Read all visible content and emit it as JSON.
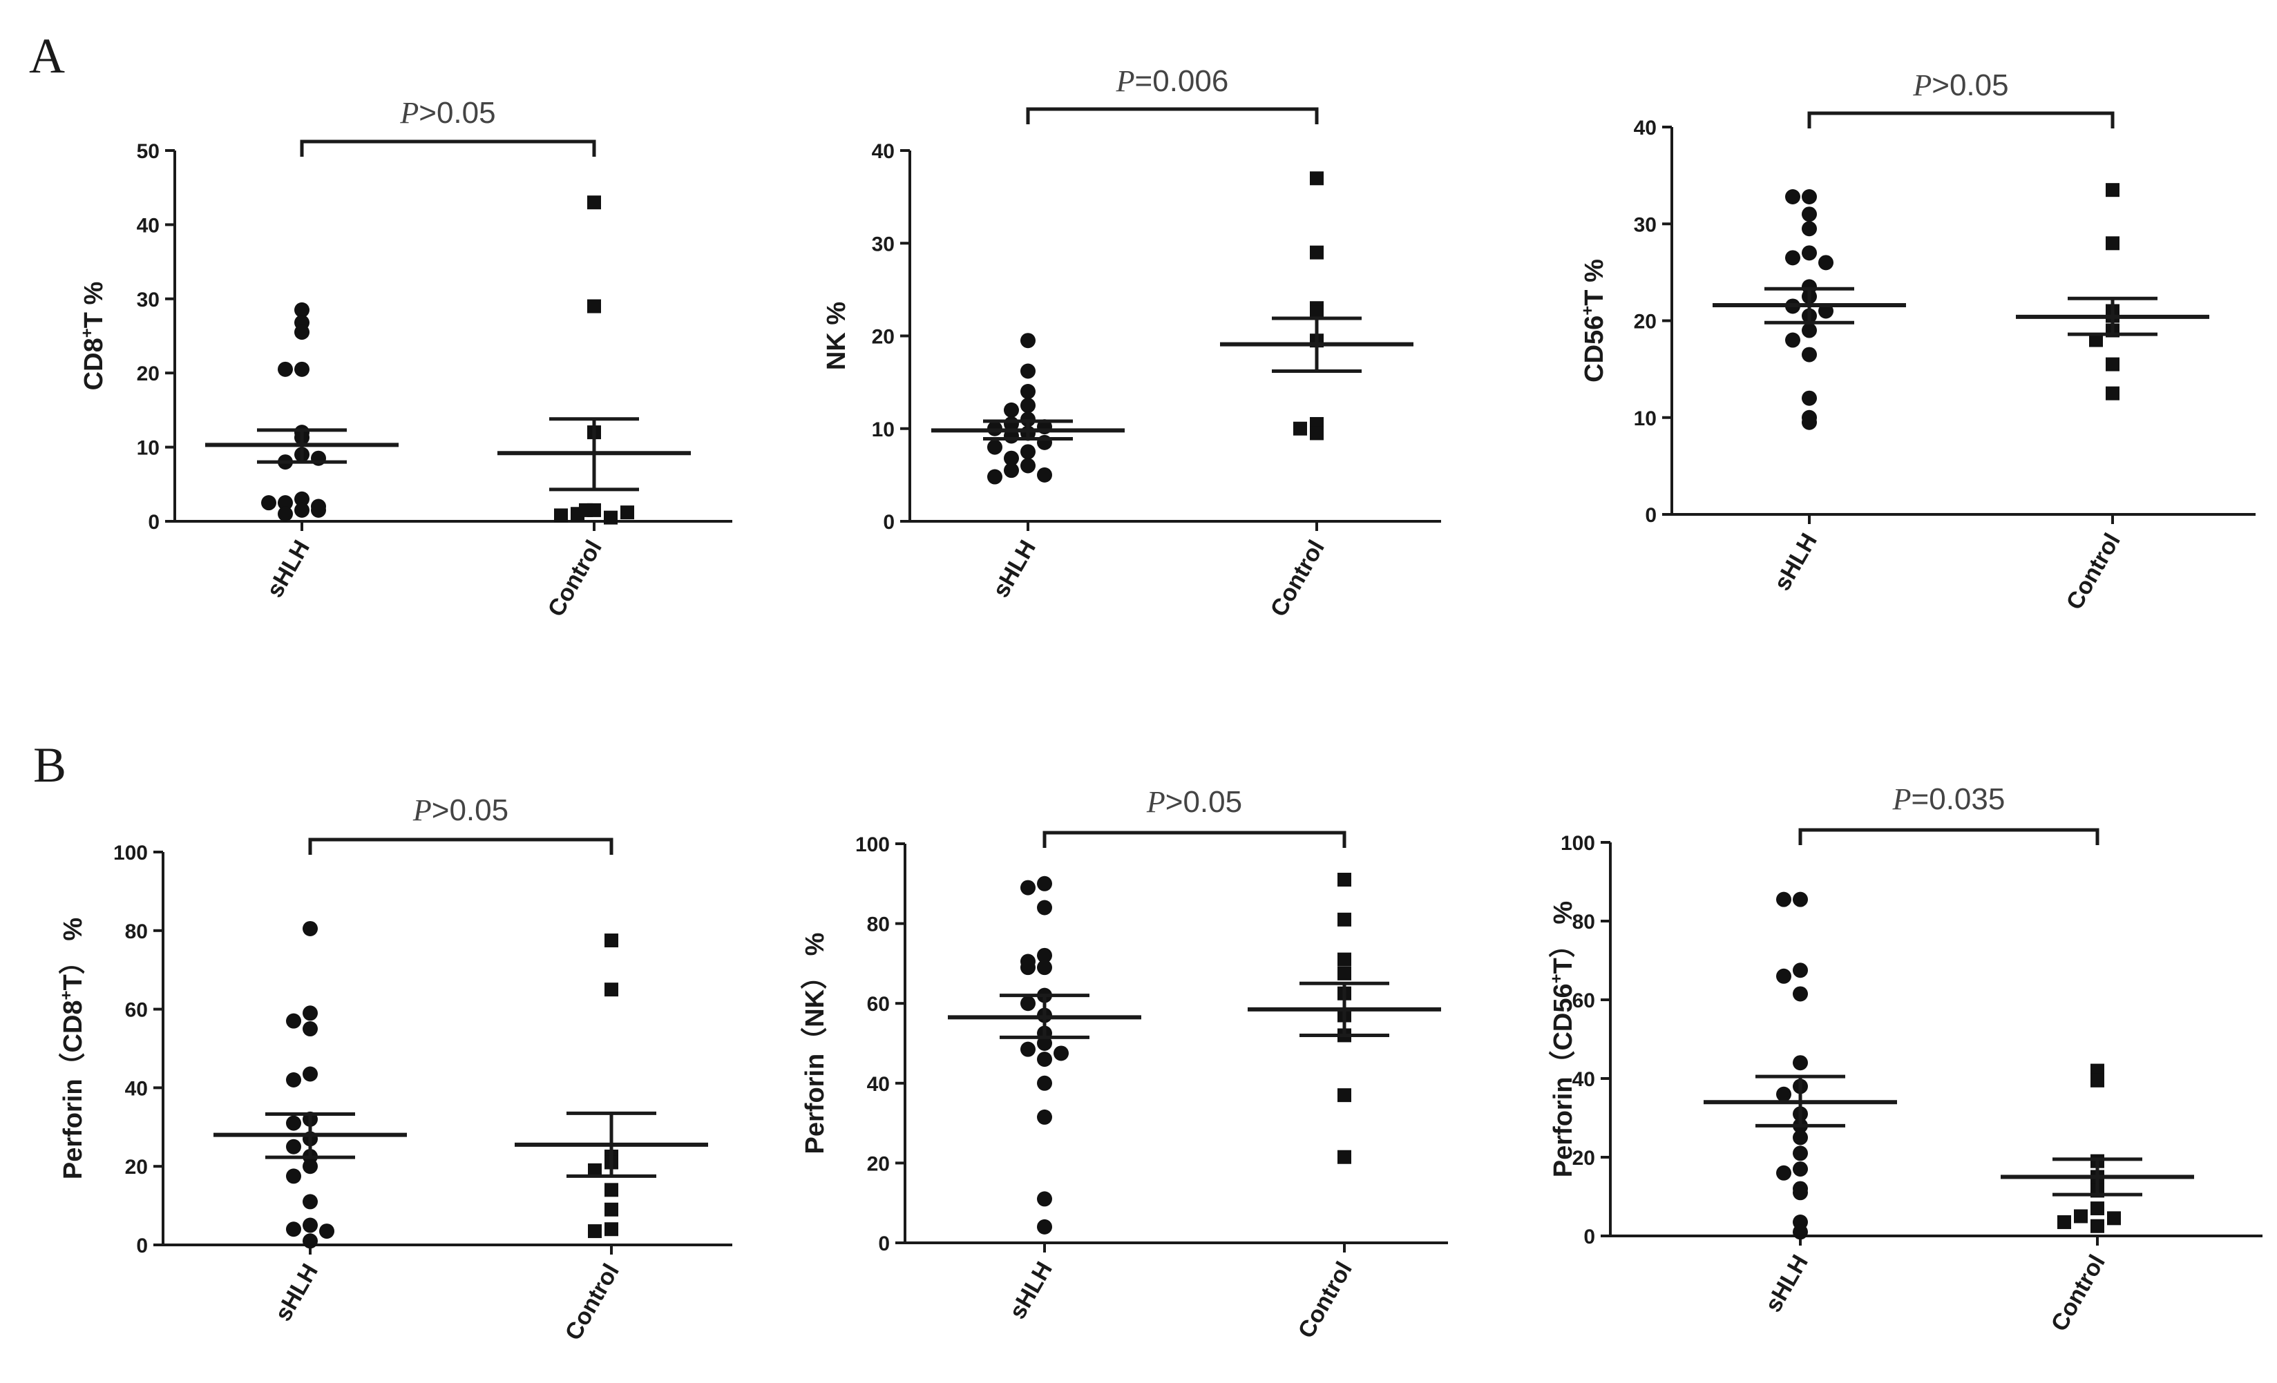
{
  "panel_letters": [
    "A",
    "B"
  ],
  "chart_data": [
    {
      "type": "scatter",
      "panel": "A",
      "ylabel_pre": "CD8",
      "ylabel_sup": "+",
      "ylabel_post": "T %",
      "ylim": [
        0,
        50
      ],
      "yticks": [
        0,
        10,
        20,
        30,
        40,
        50
      ],
      "categories": [
        "sHLH",
        "Control"
      ],
      "p_symbol": "P",
      "p_text": ">0.05",
      "series": [
        {
          "name": "sHLH",
          "marker": "circle",
          "mean": 10.3,
          "sem_low": 8.0,
          "sem_high": 12.3,
          "values": [
            28.5,
            26.8,
            25.5,
            20.5,
            20.5,
            12.0,
            11.3,
            9.0,
            8.0,
            8.5,
            3.0,
            2.5,
            2.0,
            1.5,
            1.0,
            1.5,
            2.5
          ]
        },
        {
          "name": "Control",
          "marker": "square",
          "mean": 9.2,
          "sem_low": 4.3,
          "sem_high": 13.8,
          "values": [
            43.0,
            29.0,
            12.0,
            1.5,
            1.0,
            0.5,
            0.8,
            1.2,
            1.5
          ]
        }
      ]
    },
    {
      "type": "scatter",
      "panel": "A",
      "ylabel_pre": "NK %",
      "ylabel_sup": "",
      "ylabel_post": "",
      "ylim": [
        0,
        40
      ],
      "yticks": [
        0,
        10,
        20,
        30,
        40
      ],
      "categories": [
        "sHLH",
        "Control"
      ],
      "p_symbol": "P",
      "p_text": "=0.006",
      "series": [
        {
          "name": "sHLH",
          "marker": "circle",
          "mean": 9.8,
          "sem_low": 8.9,
          "sem_high": 10.8,
          "values": [
            19.5,
            16.2,
            14.0,
            12.5,
            12.0,
            11.0,
            10.5,
            10.2,
            10.0,
            9.5,
            9.2,
            8.5,
            8.0,
            7.5,
            6.8,
            6.0,
            5.5,
            5.0,
            4.8
          ]
        },
        {
          "name": "Control",
          "marker": "square",
          "mean": 19.1,
          "sem_low": 16.2,
          "sem_high": 21.9,
          "values": [
            37.0,
            29.0,
            23.0,
            22.5,
            19.5,
            10.5,
            10.0,
            9.5
          ]
        }
      ]
    },
    {
      "type": "scatter",
      "panel": "A",
      "ylabel_pre": "CD56",
      "ylabel_sup": "+",
      "ylabel_post": "T %",
      "ylim": [
        0,
        40
      ],
      "yticks": [
        0,
        10,
        20,
        30,
        40
      ],
      "categories": [
        "sHLH",
        "Control"
      ],
      "p_symbol": "P",
      "p_text": ">0.05",
      "series": [
        {
          "name": "sHLH",
          "marker": "circle",
          "mean": 21.6,
          "sem_low": 19.8,
          "sem_high": 23.3,
          "values": [
            32.8,
            32.8,
            31.0,
            29.5,
            27.0,
            26.5,
            26.0,
            23.5,
            22.5,
            21.5,
            21.0,
            20.5,
            19.0,
            18.0,
            16.5,
            12.0,
            10.0,
            9.5
          ]
        },
        {
          "name": "Control",
          "marker": "square",
          "mean": 20.4,
          "sem_low": 18.6,
          "sem_high": 22.3,
          "values": [
            33.5,
            28.0,
            21.0,
            20.5,
            19.0,
            18.0,
            15.5,
            12.5
          ]
        }
      ]
    },
    {
      "type": "scatter",
      "panel": "B",
      "ylabel_pre": "Perforin（CD8",
      "ylabel_sup": "+",
      "ylabel_post": "T） %",
      "ylim": [
        0,
        100
      ],
      "yticks": [
        0,
        20,
        40,
        60,
        80,
        100
      ],
      "categories": [
        "sHLH",
        "Control"
      ],
      "p_symbol": "P",
      "p_text": ">0.05",
      "series": [
        {
          "name": "sHLH",
          "marker": "circle",
          "mean": 28.0,
          "sem_low": 22.3,
          "sem_high": 33.3,
          "values": [
            80.5,
            59.0,
            57.0,
            55.0,
            43.5,
            42.0,
            32.0,
            31.0,
            27.0,
            25.0,
            22.5,
            20.0,
            17.5,
            11.0,
            5.0,
            4.0,
            3.5,
            1.0
          ]
        },
        {
          "name": "Control",
          "marker": "square",
          "mean": 25.5,
          "sem_low": 17.5,
          "sem_high": 33.5,
          "values": [
            77.5,
            65.0,
            22.5,
            21.0,
            19.0,
            14.0,
            9.0,
            4.0,
            3.5
          ]
        }
      ]
    },
    {
      "type": "scatter",
      "panel": "B",
      "ylabel_pre": "Perforin（NK）  %",
      "ylabel_sup": "",
      "ylabel_post": "",
      "ylim": [
        0,
        100
      ],
      "yticks": [
        0,
        20,
        40,
        60,
        80,
        100
      ],
      "categories": [
        "sHLH",
        "Control"
      ],
      "p_symbol": "P",
      "p_text": ">0.05",
      "series": [
        {
          "name": "sHLH",
          "marker": "circle",
          "mean": 56.5,
          "sem_low": 51.5,
          "sem_high": 62.0,
          "values": [
            90.0,
            89.0,
            84.0,
            72.0,
            70.5,
            69.0,
            69.0,
            62.0,
            60.0,
            57.0,
            52.5,
            50.0,
            48.5,
            47.5,
            46.0,
            40.0,
            31.5,
            11.0,
            4.0
          ]
        },
        {
          "name": "Control",
          "marker": "square",
          "mean": 58.5,
          "sem_low": 52.0,
          "sem_high": 65.0,
          "values": [
            91.0,
            81.0,
            71.0,
            67.5,
            62.5,
            57.0,
            52.0,
            37.0,
            21.5
          ]
        }
      ]
    },
    {
      "type": "scatter",
      "panel": "B",
      "ylabel_pre": "Perforin（CD56",
      "ylabel_sup": "+",
      "ylabel_post": "T） %",
      "ylim": [
        0,
        100
      ],
      "yticks": [
        0,
        20,
        40,
        60,
        80,
        100
      ],
      "categories": [
        "sHLH",
        "Control"
      ],
      "p_symbol": "P",
      "p_text": "=0.035",
      "series": [
        {
          "name": "sHLH",
          "marker": "circle",
          "mean": 34.0,
          "sem_low": 28.0,
          "sem_high": 40.5,
          "values": [
            85.5,
            85.5,
            67.5,
            66.0,
            61.5,
            44.0,
            38.0,
            36.0,
            31.0,
            28.0,
            25.0,
            21.0,
            17.0,
            16.0,
            12.0,
            11.0,
            3.5,
            1.0
          ]
        },
        {
          "name": "Control",
          "marker": "square",
          "mean": 15.0,
          "sem_low": 10.5,
          "sem_high": 19.5,
          "values": [
            42.0,
            39.5,
            19.0,
            15.0,
            11.5,
            7.0,
            5.0,
            4.5,
            3.5,
            2.5
          ]
        }
      ]
    }
  ]
}
